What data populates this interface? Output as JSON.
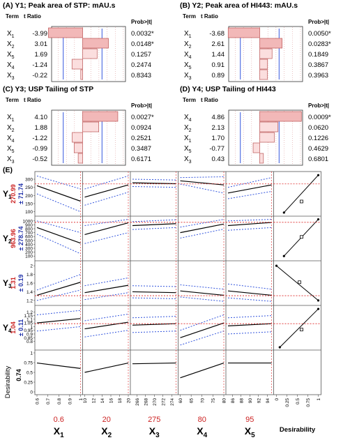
{
  "chart_data": [
    {
      "type": "bar",
      "panel_label": "(A)",
      "title": "Y1; Peak area of STP: mAU.s",
      "col_term": "Term",
      "col_tratio": "t Ratio",
      "col_prob": "Prob>|t|",
      "rows": [
        {
          "term": "X1",
          "t_ratio": -3.99,
          "t_label": "-3.99",
          "prob": "0.0032*",
          "significant": true
        },
        {
          "term": "X2",
          "t_ratio": 3.01,
          "t_label": "3.01",
          "prob": "0.0148*",
          "significant": true
        },
        {
          "term": "X5",
          "t_ratio": 1.69,
          "t_label": "1.69",
          "prob": "0.1257",
          "significant": false
        },
        {
          "term": "X4",
          "t_ratio": -1.24,
          "t_label": "-1.24",
          "prob": "0.2474",
          "significant": false
        },
        {
          "term": "X3",
          "t_ratio": -0.22,
          "t_label": "-0.22",
          "prob": "0.8343",
          "significant": false
        }
      ]
    },
    {
      "type": "bar",
      "panel_label": "(B)",
      "title": "Y2; Peak area of HI443: mAU.s",
      "col_term": "Term",
      "col_tratio": "t Ratio",
      "col_prob": "Prob>|t|",
      "rows": [
        {
          "term": "X1",
          "t_ratio": -3.68,
          "t_label": "-3.68",
          "prob": "0.0050*",
          "significant": true
        },
        {
          "term": "X2",
          "t_ratio": 2.61,
          "t_label": "2.61",
          "prob": "0.0283*",
          "significant": true
        },
        {
          "term": "X4",
          "t_ratio": 1.44,
          "t_label": "1.44",
          "prob": "0.1849",
          "significant": false
        },
        {
          "term": "X5",
          "t_ratio": 0.91,
          "t_label": "0.91",
          "prob": "0.3867",
          "significant": false
        },
        {
          "term": "X3",
          "t_ratio": 0.89,
          "t_label": "0.89",
          "prob": "0.3963",
          "significant": false
        }
      ]
    },
    {
      "type": "bar",
      "panel_label": "(C)",
      "title": "Y3; USP Tailing of STP",
      "col_term": "Term",
      "col_tratio": "t Ratio",
      "col_prob": "Prob>|t|",
      "rows": [
        {
          "term": "X1",
          "t_ratio": 4.1,
          "t_label": "4.10",
          "prob": "0.0027*",
          "significant": true
        },
        {
          "term": "X2",
          "t_ratio": 1.88,
          "t_label": "1.88",
          "prob": "0.0924",
          "significant": false
        },
        {
          "term": "X4",
          "t_ratio": -1.22,
          "t_label": "-1.22",
          "prob": "0.2521",
          "significant": false
        },
        {
          "term": "X5",
          "t_ratio": -0.99,
          "t_label": "-0.99",
          "prob": "0.3487",
          "significant": false
        },
        {
          "term": "X3",
          "t_ratio": -0.52,
          "t_label": "-0.52",
          "prob": "0.6171",
          "significant": false
        }
      ]
    },
    {
      "type": "bar",
      "panel_label": "(D)",
      "title": "Y4; USP Tailing of HI443",
      "col_term": "Term",
      "col_tratio": "t Ratio",
      "col_prob": "Prob>|t|",
      "rows": [
        {
          "term": "X4",
          "t_ratio": 4.86,
          "t_label": "4.86",
          "prob": "0.0009*",
          "significant": true
        },
        {
          "term": "X2",
          "t_ratio": 2.13,
          "t_label": "2.13",
          "prob": "0.0620",
          "significant": false
        },
        {
          "term": "X1",
          "t_ratio": 1.7,
          "t_label": "1.70",
          "prob": "0.1226",
          "significant": false
        },
        {
          "term": "X5",
          "t_ratio": -0.77,
          "t_label": "-0.77",
          "prob": "0.4629",
          "significant": false
        },
        {
          "term": "X3",
          "t_ratio": 0.43,
          "t_label": "0.43",
          "prob": "0.6801",
          "significant": false
        }
      ]
    },
    {
      "type": "line",
      "panel_label": "(E)",
      "colors": {
        "desirability_value": "#cc2222",
        "ci_value": "#2233aa",
        "fit_line": "#000000",
        "ci_line": "#3355dd",
        "ref_line": "#dd2222",
        "factor_value": "#cc2222"
      },
      "responses": [
        {
          "name": "Y1",
          "value": "270.99",
          "ci": "± 71.74",
          "ylim": [
            90,
            330
          ],
          "yticks": [
            "100",
            "150",
            "200",
            "250",
            "300"
          ]
        },
        {
          "name": "Y2",
          "value": "963.96",
          "ci": "± 278.74",
          "ylim": [
            50,
            1050
          ],
          "yticks": [
            "100",
            "200",
            "300",
            "400",
            "500",
            "600",
            "700",
            "800",
            "900",
            "1000"
          ]
        },
        {
          "name": "Y3",
          "value": "1.31",
          "ci": "± 0.19",
          "ylim": [
            1.15,
            2.05
          ],
          "yticks": [
            "1.2",
            "1.4",
            "1.6",
            "1.8",
            "2"
          ]
        },
        {
          "name": "Y4",
          "value": "1.04",
          "ci": "± 0.11",
          "ylim": [
            0.72,
            1.25
          ],
          "yticks": [
            "0.8",
            "0.85",
            "0.9",
            "0.95",
            "1",
            "1.05",
            "1.1",
            "1.15",
            "1.2"
          ]
        },
        {
          "name": "Desirability",
          "value": "0.74",
          "ci": "",
          "ylim": [
            0,
            1
          ],
          "yticks": [
            "0",
            "0.25",
            "0.5",
            "0.75",
            "1"
          ]
        }
      ],
      "factors": [
        {
          "name": "X1",
          "current": "0.6",
          "xlim": [
            0.6,
            1.0
          ],
          "xticks": [
            "0.6",
            "0.7",
            "0.8",
            "0.9",
            "1"
          ]
        },
        {
          "name": "X2",
          "current": "20",
          "xlim": [
            10,
            20
          ],
          "xticks": [
            "10",
            "12",
            "14",
            "16",
            "18",
            "20"
          ]
        },
        {
          "name": "X3",
          "current": "275",
          "xlim": [
            265,
            275
          ],
          "xticks": [
            "266",
            "268",
            "270",
            "272",
            "274"
          ]
        },
        {
          "name": "X4",
          "current": "80",
          "xlim": [
            60,
            80
          ],
          "xticks": [
            "60",
            "65",
            "70",
            "75",
            "80"
          ]
        },
        {
          "name": "X5",
          "current": "95",
          "xlim": [
            85,
            95
          ],
          "xticks": [
            "86",
            "88",
            "90",
            "92",
            "94"
          ]
        }
      ],
      "desirability_column": {
        "label": "Desirability",
        "xticks": [
          "0",
          "0.25",
          "0.5",
          "0.75",
          "1"
        ]
      },
      "traces": [
        [
          {
            "y0": 260,
            "y1": 165,
            "lo0": 210,
            "lo1": 100,
            "hi0": 320,
            "hi1": 240
          },
          {
            "y0": 190,
            "y1": 265,
            "lo0": 140,
            "lo1": 220,
            "hi0": 240,
            "hi1": 320
          },
          {
            "y0": 278,
            "y1": 272,
            "lo0": 255,
            "lo1": 250,
            "hi0": 300,
            "hi1": 295
          },
          {
            "y0": 290,
            "y1": 265,
            "lo0": 270,
            "lo1": 215,
            "hi0": 310,
            "hi1": 315
          },
          {
            "y0": 215,
            "y1": 265,
            "lo0": 180,
            "lo1": 225,
            "hi0": 250,
            "hi1": 310
          }
        ],
        [
          {
            "y0": 830,
            "y1": 430,
            "lo0": 660,
            "lo1": 160,
            "hi0": 1000,
            "hi1": 700
          },
          {
            "y0": 650,
            "y1": 950,
            "lo0": 420,
            "lo1": 700,
            "hi0": 880,
            "hi1": 1040
          },
          {
            "y0": 880,
            "y1": 930,
            "lo0": 780,
            "lo1": 830,
            "hi0": 980,
            "hi1": 1030
          },
          {
            "y0": 700,
            "y1": 920,
            "lo0": 560,
            "lo1": 790,
            "hi0": 840,
            "hi1": 1040
          },
          {
            "y0": 880,
            "y1": 960,
            "lo0": 760,
            "lo1": 830,
            "hi0": 1000,
            "hi1": 1040
          }
        ],
        [
          {
            "y0": 1.32,
            "y1": 1.62,
            "lo0": 1.2,
            "lo1": 1.44,
            "hi0": 1.44,
            "hi1": 1.8
          },
          {
            "y0": 1.38,
            "y1": 1.55,
            "lo0": 1.22,
            "lo1": 1.38,
            "hi0": 1.54,
            "hi1": 1.72
          },
          {
            "y0": 1.4,
            "y1": 1.38,
            "lo0": 1.26,
            "lo1": 1.24,
            "hi0": 1.54,
            "hi1": 1.52
          },
          {
            "y0": 1.42,
            "y1": 1.32,
            "lo0": 1.28,
            "lo1": 1.18,
            "hi0": 1.56,
            "hi1": 1.46
          },
          {
            "y0": 1.42,
            "y1": 1.32,
            "lo0": 1.26,
            "lo1": 1.18,
            "hi0": 1.58,
            "hi1": 1.46
          }
        ],
        [
          {
            "y0": 1.05,
            "y1": 1.11,
            "lo0": 0.94,
            "lo1": 1.0,
            "hi0": 1.16,
            "hi1": 1.22
          },
          {
            "y0": 0.97,
            "y1": 1.06,
            "lo0": 0.86,
            "lo1": 0.95,
            "hi0": 1.08,
            "hi1": 1.17
          },
          {
            "y0": 1.02,
            "y1": 1.04,
            "lo0": 0.92,
            "lo1": 0.94,
            "hi0": 1.12,
            "hi1": 1.14
          },
          {
            "y0": 0.85,
            "y1": 1.05,
            "lo0": 0.75,
            "lo1": 0.94,
            "hi0": 0.95,
            "hi1": 1.16
          },
          {
            "y0": 1.01,
            "y1": 1.04,
            "lo0": 0.9,
            "lo1": 0.93,
            "hi0": 1.12,
            "hi1": 1.15
          }
        ],
        [
          {
            "y0": 0.74,
            "y1": 0.6
          },
          {
            "y0": 0.5,
            "y1": 0.74
          },
          {
            "y0": 0.72,
            "y1": 0.74
          },
          {
            "y0": 0.36,
            "y1": 0.74
          },
          {
            "y0": 0.74,
            "y1": 0.74
          }
        ]
      ],
      "desirability_curves": [
        {
          "points": [
            [
              0.18,
              95
            ],
            [
              1.0,
              325
            ]
          ],
          "marker": [
            0.6,
            163
          ]
        },
        {
          "points": [
            [
              0.18,
              100
            ],
            [
              1.0,
              1040
            ]
          ],
          "marker": [
            0.6,
            590
          ]
        },
        {
          "points": [
            [
              0.0,
              2.0
            ],
            [
              1.0,
              1.2
            ]
          ],
          "marker": [
            0.55,
            1.62
          ]
        },
        {
          "points": [
            [
              0.08,
              0.72
            ],
            [
              1.0,
              1.24
            ]
          ],
          "marker": [
            0.6,
            0.96
          ]
        }
      ]
    }
  ]
}
